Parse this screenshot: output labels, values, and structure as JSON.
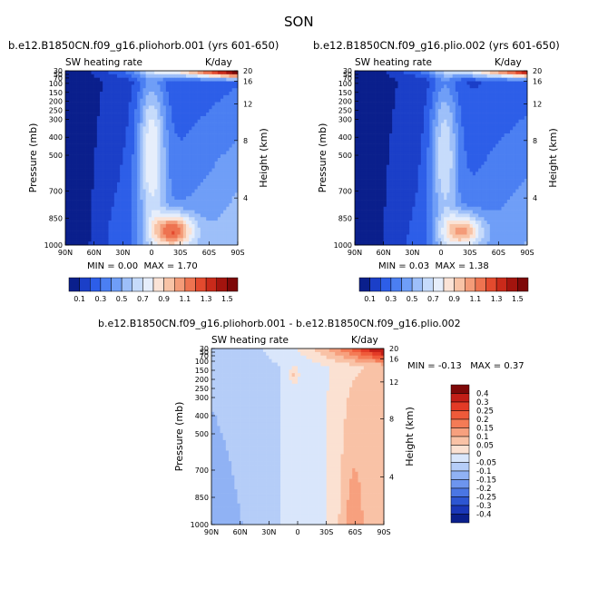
{
  "page": {
    "season": "SON"
  },
  "chart_data": [
    {
      "type": "heatmap",
      "id": "panel1",
      "title": "b.e12.B1850CN.f09_g16.pliohorb.001 (yrs 601-650)",
      "left_label": "SW heating rate",
      "right_label": "K/day",
      "xlabel": "",
      "ylabel": "Pressure (mb)",
      "y2label": "Height (km)",
      "xticks": [
        "90N",
        "60N",
        "30N",
        "0",
        "30S",
        "60S",
        "90S"
      ],
      "yticks": [
        "30",
        "50",
        "70",
        "100",
        "150",
        "200",
        "250",
        "300",
        "400",
        "500",
        "700",
        "850",
        "1000"
      ],
      "y2ticks": [
        "20",
        "16",
        "12",
        "8",
        "4"
      ],
      "stats": {
        "min_label": "MIN =",
        "min": "0.00",
        "max_label": "MAX =",
        "max": "1.70"
      }
    },
    {
      "type": "heatmap",
      "id": "panel2",
      "title": "b.e12.B1850CN.f09_g16.plio.002 (yrs 601-650)",
      "left_label": "SW heating rate",
      "right_label": "K/day",
      "xlabel": "",
      "ylabel": "Pressure (mb)",
      "y2label": "Height (km)",
      "xticks": [
        "90N",
        "60N",
        "30N",
        "0",
        "30S",
        "60S",
        "90S"
      ],
      "yticks": [
        "30",
        "50",
        "70",
        "100",
        "150",
        "200",
        "250",
        "300",
        "400",
        "500",
        "700",
        "850",
        "1000"
      ],
      "y2ticks": [
        "20",
        "16",
        "12",
        "8",
        "4"
      ],
      "stats": {
        "min_label": "MIN =",
        "min": "0.03",
        "max_label": "MAX =",
        "max": "1.38"
      }
    },
    {
      "type": "heatmap",
      "id": "panel3",
      "title": "b.e12.B1850CN.f09_g16.pliohorb.001 - b.e12.B1850CN.f09_g16.plio.002",
      "left_label": "SW heating rate",
      "right_label": "K/day",
      "xlabel": "",
      "ylabel": "Pressure (mb)",
      "y2label": "Height (km)",
      "xticks": [
        "90N",
        "60N",
        "30N",
        "0",
        "30S",
        "60S",
        "90S"
      ],
      "yticks": [
        "30",
        "50",
        "70",
        "100",
        "150",
        "200",
        "250",
        "300",
        "400",
        "500",
        "700",
        "850",
        "1000"
      ],
      "y2ticks": [
        "20",
        "16",
        "12",
        "8",
        "4"
      ],
      "stats": {
        "min_label": "MIN =",
        "min": "-0.13",
        "max_label": "MAX =",
        "max": "0.37"
      }
    }
  ],
  "colorbars": {
    "top": {
      "labels": [
        "0.1",
        "0.3",
        "0.5",
        "0.7",
        "0.9",
        "1.1",
        "1.3",
        "1.5"
      ],
      "colors": [
        "#0a1f8c",
        "#1b3fc8",
        "#2d5ee8",
        "#4b7ff2",
        "#6f9ef7",
        "#9dbff9",
        "#c6dbfb",
        "#e6eefb",
        "#fbe3d6",
        "#f8c3a6",
        "#f49b78",
        "#ee7350",
        "#e34a2e",
        "#c92a1a",
        "#a3140e",
        "#7e0808"
      ]
    },
    "bottom": {
      "labels": [
        "0.4",
        "0.3",
        "0.25",
        "0.2",
        "0.15",
        "0.1",
        "0.05",
        "0",
        "-0.05",
        "-0.1",
        "-0.15",
        "-0.2",
        "-0.25",
        "-0.3",
        "-0.4"
      ],
      "colors": [
        "#7e0808",
        "#c21e17",
        "#e33a26",
        "#ef5a3a",
        "#f47b56",
        "#f7a07e",
        "#f9c2a6",
        "#fbe1d2",
        "#d9e6fb",
        "#b5cdf8",
        "#90b2f4",
        "#6d95ee",
        "#4a76e4",
        "#2d56d2",
        "#1a37b8",
        "#0a1f8c"
      ]
    }
  }
}
